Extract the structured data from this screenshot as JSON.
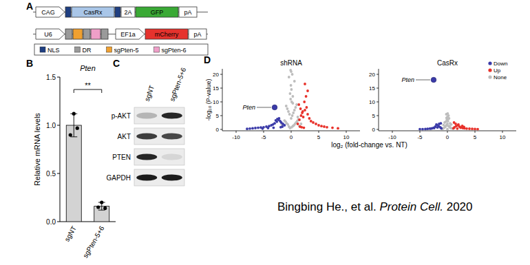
{
  "panel_labels": [
    "A",
    "B",
    "C",
    "D"
  ],
  "diagram": {
    "constructs": [
      [
        {
          "label": "CAG",
          "kind": "promoter",
          "color": "#ffffff"
        },
        {
          "label": null,
          "kind": "tag",
          "color": "#1f3f82"
        },
        {
          "label": "CasRx",
          "kind": "gene",
          "color": "#a9c6e8"
        },
        {
          "label": null,
          "kind": "tag",
          "color": "#1f3f82"
        },
        {
          "label": "2A",
          "kind": "short",
          "color": "#ffffff"
        },
        {
          "label": "GFP",
          "kind": "gene",
          "color": "#3aa935"
        },
        {
          "label": "pA",
          "kind": "pa",
          "color": "#ffffff"
        }
      ],
      [
        {
          "label": "U6",
          "kind": "promoter",
          "color": "#ffffff"
        },
        {
          "label": null,
          "kind": "spacer",
          "color": "#9a9a9a"
        },
        {
          "label": null,
          "kind": "guide",
          "color": "#f0a030"
        },
        {
          "label": null,
          "kind": "spacer",
          "color": "#9a9a9a"
        },
        {
          "label": null,
          "kind": "guide",
          "color": "#ef9fc8"
        },
        {
          "label": null,
          "kind": "spacer",
          "color": "#9a9a9a"
        },
        {
          "label": "EF1a",
          "kind": "promoter",
          "color": "#ffffff"
        },
        {
          "label": "mCherry",
          "kind": "gene",
          "color": "#e5322d"
        },
        {
          "label": "pA",
          "kind": "pa",
          "color": "#ffffff"
        }
      ]
    ],
    "legend": [
      {
        "label": "NLS",
        "color": "#1f3f82"
      },
      {
        "label": "DR",
        "color": "#9a9a9a"
      },
      {
        "label": "sgPten-5",
        "color": "#f0a030"
      },
      {
        "label": "sgPten-6",
        "color": "#ef9fc8"
      }
    ]
  },
  "chart_data": [
    {
      "type": "bar",
      "title": "Pten",
      "y_label": "Relative mRNA levels",
      "categories": [
        "sgNT",
        "sgPten-5+6"
      ],
      "values": [
        1.0,
        0.16
      ],
      "errors": [
        0.12,
        0.04
      ],
      "points": [
        [
          1.12,
          0.97,
          0.9
        ],
        [
          0.2,
          0.14,
          0.15
        ]
      ],
      "color": "#d3d3d3",
      "ylim": [
        0,
        1.5
      ],
      "yticks": [
        {
          "value": 0,
          "label": "0.0"
        },
        0.5,
        {
          "value": 1,
          "label": "1.0"
        },
        1.5
      ],
      "annotations": [
        "**"
      ]
    },
    {
      "type": "scatter",
      "title": "shRNA",
      "x_label": "log₂ (fold-change vs. NT)",
      "y_label": "-log₁₀ (P-value)",
      "xlim": [
        -12.5,
        12.5
      ],
      "xticks": [
        -10,
        -5,
        0,
        5,
        10
      ],
      "ylim": [
        -0.5,
        22
      ],
      "yticks": [
        0,
        5,
        10,
        15,
        20
      ],
      "series": [
        {
          "name": "Down",
          "color": "#3a3aa8",
          "x": [
            -1.2,
            -1.5,
            -1.8,
            -2.0,
            -2.3,
            -2.6,
            -3.0,
            -3.3,
            -3.6,
            -4.0,
            -4.5,
            -5.0,
            -5.5,
            -6.0,
            -6.5,
            -7.0,
            -7.5,
            -8.0,
            -2.2,
            -2.5,
            -2.8,
            -1.6,
            -1.9,
            -3.2,
            -4.2,
            -5.2
          ],
          "values": [
            1.5,
            2.0,
            2.5,
            3.0,
            3.5,
            2.8,
            2.2,
            1.8,
            1.5,
            1.2,
            1.0,
            0.8,
            0.7,
            0.6,
            0.5,
            0.4,
            0.3,
            0.2,
            4.0,
            3.8,
            3.3,
            1.0,
            0.8,
            0.6,
            0.5,
            0.3
          ]
        },
        {
          "name": "Up",
          "color": "#e8312a",
          "x": [
            1.2,
            1.5,
            1.8,
            2.0,
            2.2,
            2.5,
            2.8,
            3.0,
            3.3,
            3.6,
            4.0,
            4.5,
            5.0,
            5.5,
            6.0,
            6.5,
            7.5,
            8.5,
            1.4,
            1.7,
            2.1,
            2.4,
            2.7,
            3.0,
            2.5,
            1.6,
            1.9,
            2.3
          ],
          "values": [
            2.0,
            3.5,
            5.0,
            6.0,
            4.5,
            7.0,
            8.0,
            5.5,
            4.0,
            3.0,
            2.5,
            2.0,
            1.5,
            1.2,
            1.0,
            0.8,
            0.6,
            0.4,
            9.0,
            7.5,
            6.5,
            10.0,
            12.0,
            14.0,
            16.5,
            1.0,
            0.8,
            0.6
          ]
        },
        {
          "name": "None",
          "color": "#bdbdbd",
          "x": [
            -0.2,
            0.1,
            0.3,
            -0.4,
            0.5,
            -0.6,
            0.7,
            -0.8,
            0.9,
            -1.0,
            1.1,
            -1.2,
            1.3,
            0.0,
            0.2,
            -0.3,
            0.4,
            -0.5,
            0.6,
            -0.7,
            0.8,
            -0.9,
            1.0,
            0.1,
            -0.1,
            0.3,
            -0.2,
            0.05,
            -0.05,
            1.5,
            -1.5,
            1.8,
            -1.7,
            0.6,
            -0.4,
            0.2,
            0.0,
            -0.1,
            0.3,
            1.2
          ],
          "values": [
            0.5,
            0.8,
            1.2,
            1.0,
            1.5,
            1.8,
            2.0,
            2.2,
            2.5,
            2.8,
            3.0,
            3.2,
            3.5,
            4.0,
            5.0,
            5.5,
            6.0,
            6.5,
            7.0,
            7.5,
            8.0,
            8.5,
            9.0,
            10.0,
            11.0,
            12.0,
            13.0,
            14.5,
            16.0,
            1.2,
            1.5,
            2.0,
            1.8,
            17.5,
            19.0,
            20.0,
            21.0,
            21.5,
            9.5,
            4.5
          ]
        }
      ],
      "annotations": [
        {
          "text": "Pten",
          "x": -3.0,
          "y": 8.0
        }
      ]
    },
    {
      "type": "scatter",
      "title": "CasRx",
      "xlim": [
        -12.5,
        12.5
      ],
      "xticks": [
        -10,
        -5,
        0,
        5,
        10
      ],
      "ylim": [
        -0.5,
        22
      ],
      "yticks": [
        0,
        5,
        10,
        15,
        20
      ],
      "legend": "top-right",
      "series": [
        {
          "name": "Down",
          "color": "#3a3aa8",
          "x": [
            -1.1,
            -1.3,
            -1.6,
            -1.9,
            -2.2,
            -2.5,
            -2.8,
            -3.2,
            -3.6,
            -4.0,
            -1.5,
            -2.0,
            -1.2,
            -1.8,
            -2.4,
            -3.0,
            -4.5,
            -5.0
          ],
          "values": [
            0.4,
            0.8,
            1.2,
            1.6,
            1.0,
            0.6,
            0.4,
            0.3,
            0.2,
            0.15,
            2.0,
            1.8,
            2.2,
            0.7,
            0.5,
            0.3,
            0.1,
            0.1
          ]
        },
        {
          "name": "Up",
          "color": "#e8312a",
          "x": [
            1.1,
            1.3,
            1.6,
            1.9,
            2.2,
            2.5,
            2.8,
            3.1,
            3.5,
            4.0,
            4.5,
            5.0,
            5.5,
            1.5,
            2.0,
            2.4,
            3.0,
            1.2,
            1.8,
            2.7
          ],
          "values": [
            0.4,
            0.8,
            1.2,
            1.5,
            1.0,
            0.7,
            0.5,
            0.4,
            0.3,
            0.25,
            0.2,
            0.15,
            0.1,
            2.0,
            1.8,
            0.6,
            0.9,
            2.5,
            0.3,
            1.3
          ]
        },
        {
          "name": "None",
          "color": "#bdbdbd",
          "x": [
            -0.8,
            -0.6,
            -0.4,
            -0.2,
            0.0,
            0.2,
            0.4,
            0.6,
            0.8,
            1.0,
            -1.0,
            -0.5,
            0.5,
            0.1,
            -0.1,
            0.3,
            -0.3,
            0.0,
            0.2,
            -0.2,
            1.2,
            -1.2,
            0.7,
            -0.7,
            0.15,
            -0.15,
            0.05,
            0.4,
            -0.4,
            0.0
          ],
          "values": [
            0.3,
            0.6,
            1.0,
            1.5,
            2.0,
            1.2,
            0.8,
            0.5,
            0.4,
            0.3,
            0.2,
            2.5,
            2.2,
            3.0,
            3.5,
            4.0,
            2.8,
            4.5,
            5.0,
            5.5,
            0.6,
            0.5,
            1.8,
            1.6,
            3.8,
            4.2,
            5.8,
            1.2,
            0.9,
            0.1
          ]
        }
      ],
      "annotations": [
        {
          "text": "Pten",
          "x": -2.5,
          "y": 18.0
        }
      ]
    }
  ],
  "blot": {
    "columns": [
      "sgNT",
      "sgPten-5+6"
    ],
    "rows": [
      {
        "label": "p-AKT",
        "bands": [
          0.25,
          0.9
        ]
      },
      {
        "label": "AKT",
        "bands": [
          0.8,
          0.75
        ]
      },
      {
        "label": "PTEN",
        "bands": [
          0.9,
          0.1
        ]
      },
      {
        "label": "GAPDH",
        "bands": [
          0.95,
          0.95
        ]
      }
    ]
  },
  "citation": {
    "authors": "Bingbing He., et al.",
    "journal": "Protein Cell.",
    "year": 2020
  }
}
